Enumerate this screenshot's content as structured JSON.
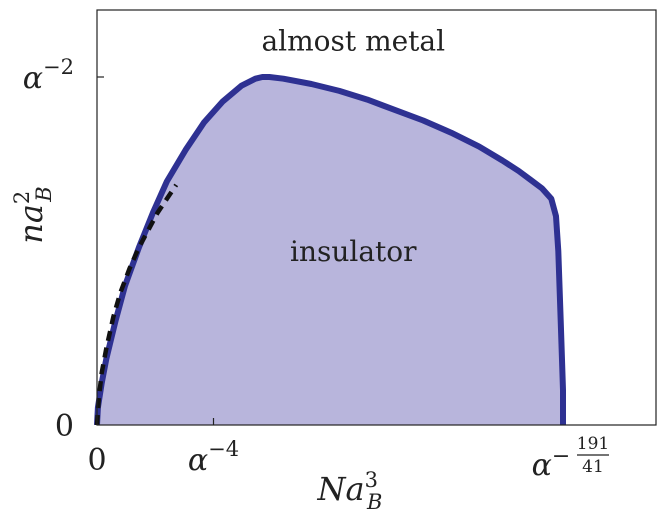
{
  "chart_data": {
    "type": "area",
    "title": "",
    "xlabel": "Na_B^3",
    "ylabel": "na_B^2",
    "xlim": [
      0,
      1.2
    ],
    "ylim": [
      0,
      1.2
    ],
    "xticks": [
      {
        "value": 0,
        "label": "0"
      },
      {
        "value": 0.25,
        "label": "α^-4"
      },
      {
        "value": 1.0,
        "label": "α^-191/41"
      }
    ],
    "yticks": [
      {
        "value": 0,
        "label": "0"
      },
      {
        "value": 1.0,
        "label": "α^-2"
      }
    ],
    "annotations": [
      {
        "text": "almost metal",
        "x": 0.55,
        "y": 1.105
      },
      {
        "text": "insulator",
        "x": 0.55,
        "y": 0.5
      }
    ],
    "series": [
      {
        "style": "solid boundary, filled region",
        "color": "#2e3192",
        "fill": "#b8b5dc",
        "x": [
          0,
          0.002,
          0.01,
          0.02,
          0.04,
          0.06,
          0.09,
          0.12,
          0.15,
          0.19,
          0.23,
          0.27,
          0.31,
          0.34,
          0.355,
          0.37,
          0.4,
          0.46,
          0.52,
          0.58,
          0.64,
          0.7,
          0.76,
          0.82,
          0.87,
          0.905,
          0.93,
          0.955,
          0.975,
          0.985,
          0.99,
          0.995,
          1.0,
          1.0
        ],
        "y": [
          0,
          0.05,
          0.12,
          0.19,
          0.3,
          0.4,
          0.51,
          0.61,
          0.7,
          0.79,
          0.87,
          0.93,
          0.975,
          0.995,
          1.0,
          1.0,
          0.995,
          0.98,
          0.96,
          0.935,
          0.905,
          0.875,
          0.84,
          0.8,
          0.76,
          0.73,
          0.705,
          0.68,
          0.65,
          0.6,
          0.5,
          0.3,
          0.1,
          0
        ]
      },
      {
        "style": "dashed",
        "color": "#111111",
        "x": [
          0,
          0.004,
          0.01,
          0.02,
          0.035,
          0.05,
          0.07,
          0.09,
          0.11,
          0.13,
          0.15,
          0.17
        ],
        "y": [
          0,
          0.08,
          0.15,
          0.22,
          0.31,
          0.38,
          0.45,
          0.51,
          0.56,
          0.61,
          0.65,
          0.69
        ]
      }
    ]
  }
}
